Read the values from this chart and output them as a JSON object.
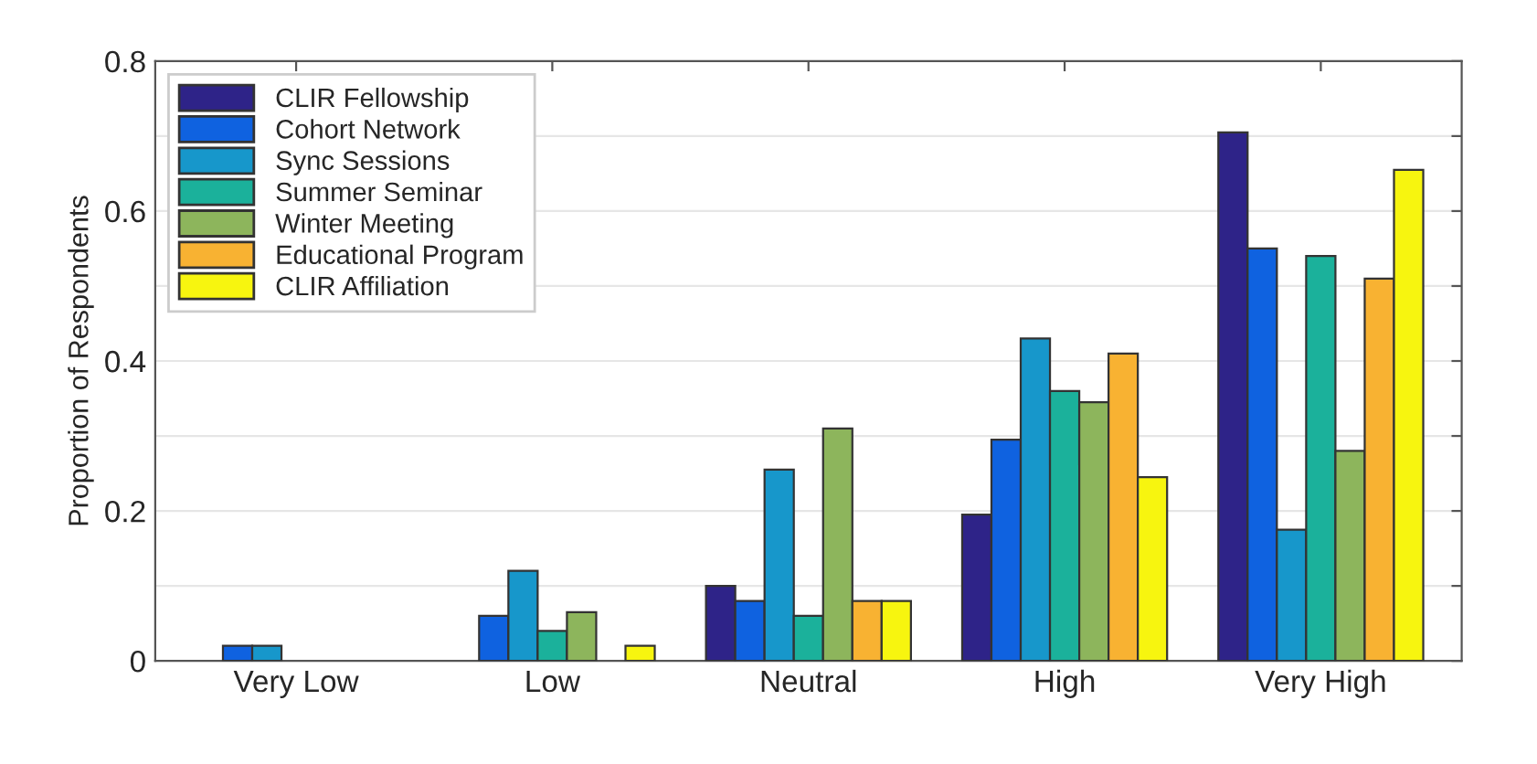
{
  "chart_data": {
    "type": "bar",
    "ylabel": "Proportion of Respondents",
    "categories": [
      "Very Low",
      "Low",
      "Neutral",
      "High",
      "Very High"
    ],
    "series": [
      {
        "name": "CLIR Fellowship",
        "color": "#2e2388",
        "values": [
          0,
          0,
          0.1,
          0.195,
          0.705
        ]
      },
      {
        "name": "Cohort Network",
        "color": "#0f62e0",
        "values": [
          0.02,
          0.06,
          0.08,
          0.295,
          0.55
        ]
      },
      {
        "name": "Sync Sessions",
        "color": "#1797cb",
        "values": [
          0.02,
          0.12,
          0.255,
          0.43,
          0.175
        ]
      },
      {
        "name": "Summer Seminar",
        "color": "#1bb19b",
        "values": [
          0,
          0.04,
          0.06,
          0.36,
          0.54
        ]
      },
      {
        "name": "Winter Meeting",
        "color": "#8db55c",
        "values": [
          0,
          0.065,
          0.31,
          0.345,
          0.28
        ]
      },
      {
        "name": "Educational Program",
        "color": "#f8b232",
        "values": [
          0,
          0,
          0.08,
          0.41,
          0.51
        ]
      },
      {
        "name": "CLIR Affiliation",
        "color": "#f7f50f",
        "values": [
          0,
          0.02,
          0.08,
          0.245,
          0.655
        ]
      }
    ],
    "ylim": [
      0,
      0.8
    ],
    "yticks": [
      0,
      {
        "value": 0.1,
        "label": null
      },
      0.2,
      {
        "value": 0.3,
        "label": null
      },
      0.4,
      {
        "value": 0.5,
        "label": null
      },
      0.6,
      {
        "value": 0.7,
        "label": null
      },
      0.8
    ],
    "grid": "y",
    "legend": "top left"
  }
}
